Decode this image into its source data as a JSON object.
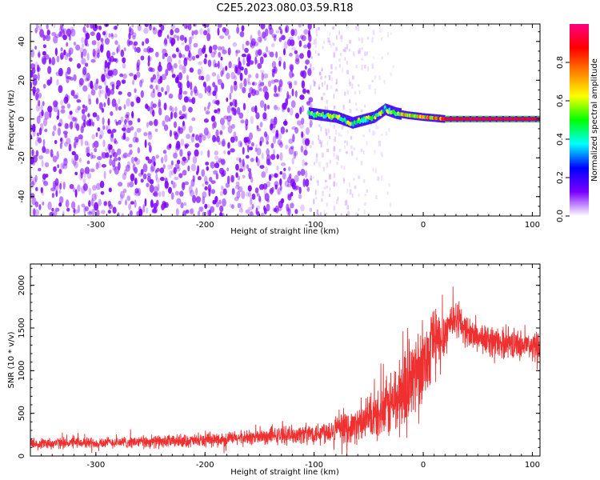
{
  "title": "C2E5.2023.080.03.59.R18",
  "chart_data": [
    {
      "type": "heatmap",
      "title": "C2E5.2023.080.03.59.R18",
      "xlabel": "Height of straight line (km)",
      "ylabel": "Frequency (Hz)",
      "xlim": [
        -360,
        107
      ],
      "ylim": [
        -50,
        49
      ],
      "xticks": [
        -300,
        -200,
        -100,
        0,
        100
      ],
      "yticks": [
        -40,
        -20,
        0,
        20,
        40
      ],
      "colorbar": {
        "label": "Normalized spectral amplitude",
        "range": [
          0,
          1
        ],
        "ticks": [
          0.0,
          0.2,
          0.4,
          0.6,
          0.8
        ],
        "colormap": [
          "#ffffff",
          "#7b00ff",
          "#0000ff",
          "#00ffff",
          "#00ff00",
          "#ffff00",
          "#ff8000",
          "#ff0000",
          "#ff0080"
        ]
      },
      "features": [
        {
          "description": "broadband noise",
          "x_range": [
            -360,
            -105
          ],
          "freq_range": [
            -50,
            49
          ],
          "amplitude_range": [
            0.0,
            0.15
          ]
        },
        {
          "description": "fading noise",
          "x_range": [
            -105,
            -25
          ],
          "freq_range": [
            -50,
            49
          ],
          "amplitude_range": [
            0.0,
            0.05
          ]
        },
        {
          "description": "carrier line",
          "x_range": [
            -105,
            107
          ],
          "center_freq_hz": [
            [
              -105,
              3
            ],
            [
              -80,
              1
            ],
            [
              -65,
              -2
            ],
            [
              -45,
              1
            ],
            [
              -35,
              5
            ],
            [
              -25,
              3
            ],
            [
              -15,
              2
            ],
            [
              0,
              1
            ],
            [
              20,
              0
            ],
            [
              107,
              0
            ]
          ],
          "amplitude_range": [
            0.2,
            0.95
          ]
        }
      ]
    },
    {
      "type": "line",
      "xlabel": "Height of straight line (km)",
      "ylabel": "SNR (10 * v/v)",
      "xlim": [
        -360,
        107
      ],
      "ylim": [
        0,
        2250
      ],
      "xticks": [
        -300,
        -200,
        -100,
        0,
        100
      ],
      "yticks": [
        0,
        500,
        1000,
        1500,
        2000
      ],
      "color": "#ef3030",
      "series": [
        {
          "x": [
            -360,
            -340,
            -320,
            -300,
            -280,
            -260,
            -240,
            -220,
            -200,
            -180,
            -160,
            -140,
            -120,
            -100,
            -90,
            -80,
            -70,
            -60,
            -50,
            -40,
            -35,
            -30,
            -25,
            -20,
            -15,
            -10,
            -5,
            0,
            5,
            8,
            10,
            15,
            20,
            25,
            30,
            35,
            40,
            50,
            60,
            70,
            80,
            90,
            100,
            107
          ],
          "values": [
            150,
            150,
            155,
            155,
            160,
            165,
            170,
            175,
            180,
            200,
            215,
            230,
            250,
            270,
            290,
            310,
            330,
            360,
            420,
            470,
            520,
            600,
            650,
            730,
            820,
            900,
            1050,
            1100,
            1200,
            1400,
            1350,
            1300,
            1450,
            1580,
            1620,
            1550,
            1450,
            1400,
            1350,
            1320,
            1330,
            1300,
            1280,
            1300
          ],
          "spread": [
            80,
            80,
            80,
            80,
            80,
            85,
            90,
            90,
            95,
            100,
            110,
            120,
            130,
            150,
            170,
            190,
            210,
            250,
            300,
            360,
            420,
            500,
            550,
            600,
            650,
            650,
            600,
            520,
            500,
            520,
            700,
            450,
            350,
            280,
            260,
            240,
            230,
            220,
            220,
            210,
            210,
            210,
            200,
            200
          ]
        }
      ]
    }
  ]
}
